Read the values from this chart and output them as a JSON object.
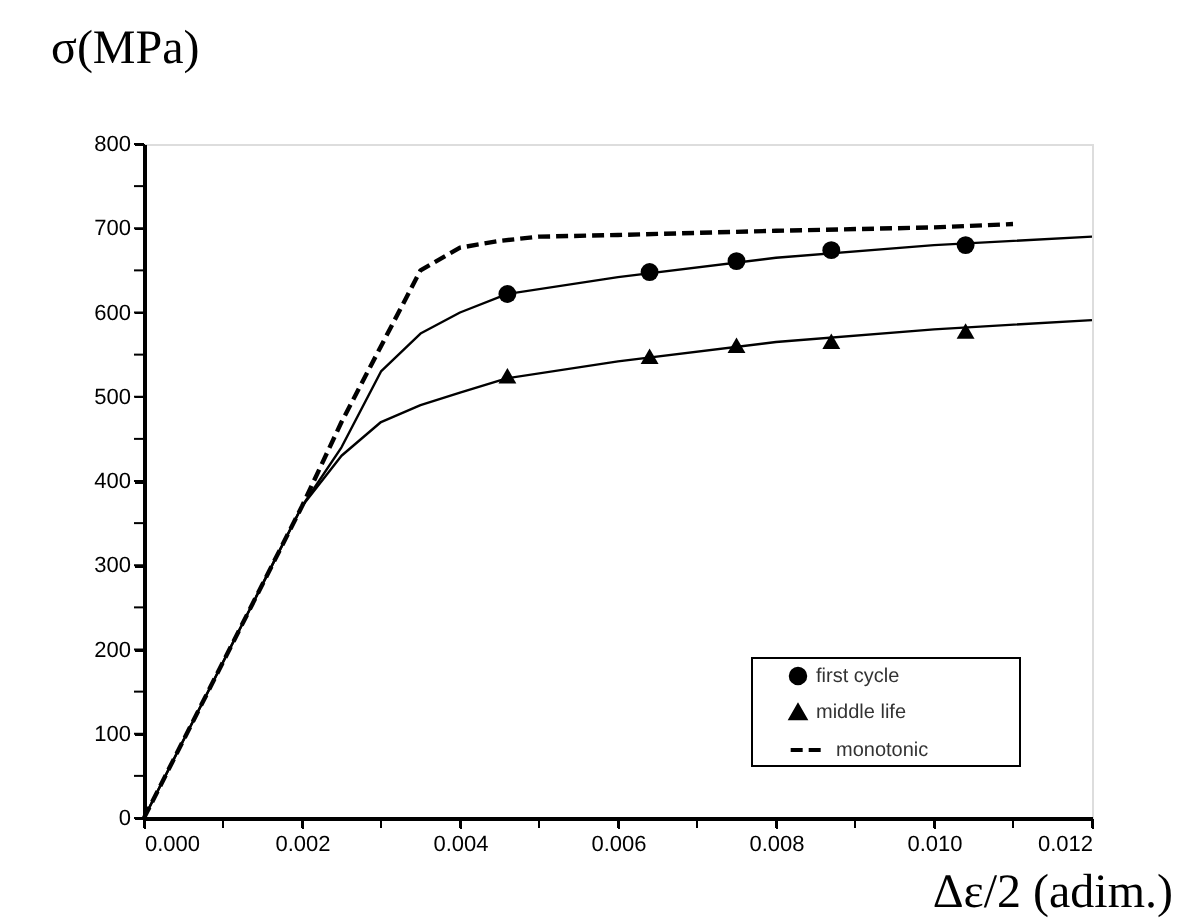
{
  "chart_data": {
    "type": "line",
    "xlabel": "Δε/2 (adim.)",
    "ylabel": "σ(MPa)",
    "xlim": [
      0,
      0.012
    ],
    "ylim": [
      0,
      800
    ],
    "xticks": [
      {
        "value": 0,
        "label": "0.000"
      },
      {
        "value": 0.001,
        "label": null
      },
      {
        "value": 0.002,
        "label": "0.002"
      },
      {
        "value": 0.003,
        "label": null
      },
      {
        "value": 0.004,
        "label": "0.004"
      },
      {
        "value": 0.005,
        "label": null
      },
      {
        "value": 0.006,
        "label": "0.006"
      },
      {
        "value": 0.007,
        "label": null
      },
      {
        "value": 0.008,
        "label": "0.008"
      },
      {
        "value": 0.009,
        "label": null
      },
      {
        "value": 0.01,
        "label": "0.010"
      },
      {
        "value": 0.011,
        "label": null
      },
      {
        "value": 0.012,
        "label": "0.012"
      }
    ],
    "yticks": [
      0,
      {
        "value": 50,
        "label": null
      },
      100,
      {
        "value": 150,
        "label": null
      },
      200,
      {
        "value": 250,
        "label": null
      },
      300,
      {
        "value": 350,
        "label": null
      },
      400,
      {
        "value": 450,
        "label": null
      },
      500,
      {
        "value": 550,
        "label": null
      },
      600,
      {
        "value": 650,
        "label": null
      },
      700,
      {
        "value": 750,
        "label": null
      },
      800
    ],
    "grid": false,
    "legend": "bottom right",
    "series": [
      {
        "type": "line",
        "color": "#000000",
        "line_style": "solid",
        "marker": "none",
        "x": [
          0,
          0.002,
          0.0025,
          0.003,
          0.0035,
          0.004,
          0.0046,
          0.006,
          0.008,
          0.01,
          0.012
        ],
        "values": [
          0,
          370,
          440,
          530,
          575,
          600,
          622,
          642,
          665,
          680,
          690
        ]
      },
      {
        "type": "line",
        "color": "#000000",
        "line_style": "solid",
        "marker": "none",
        "x": [
          0,
          0.002,
          0.0025,
          0.003,
          0.0035,
          0.004,
          0.0046,
          0.006,
          0.008,
          0.01,
          0.012
        ],
        "values": [
          0,
          370,
          430,
          470,
          490,
          505,
          522,
          542,
          565,
          580,
          591
        ]
      },
      {
        "name": "first cycle",
        "type": "scatter",
        "color": "#000000",
        "marker": "circle",
        "x": [
          0.0046,
          0.0064,
          0.0075,
          0.0087,
          0.0104
        ],
        "values": [
          622,
          648,
          661,
          674,
          680
        ]
      },
      {
        "name": "middle life",
        "type": "scatter",
        "color": "#000000",
        "marker": "triangle",
        "x": [
          0.0046,
          0.0064,
          0.0075,
          0.0087,
          0.0104
        ],
        "values": [
          525,
          548,
          561,
          566,
          578
        ]
      },
      {
        "name": "monotonic",
        "type": "line",
        "color": "#000000",
        "line_style": "dashed",
        "x": [
          0,
          0.002,
          0.0025,
          0.003,
          0.0035,
          0.004,
          0.0045,
          0.005,
          0.006,
          0.008,
          0.01,
          0.011
        ],
        "values": [
          0,
          370,
          470,
          560,
          650,
          677,
          685,
          690,
          692,
          697,
          701,
          705
        ]
      }
    ]
  }
}
